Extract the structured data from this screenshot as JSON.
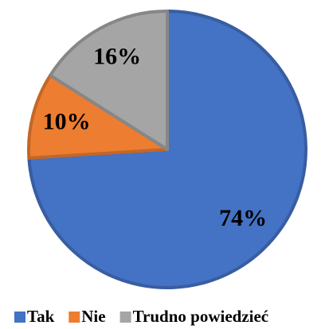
{
  "chart_data": {
    "type": "pie",
    "categories": [
      "Tak",
      "Nie",
      "Trudno powiedzieć"
    ],
    "values": [
      74,
      10,
      16
    ],
    "value_labels": [
      "74%",
      "10%",
      "16%"
    ],
    "colors": [
      "#4472c4",
      "#ed7d31",
      "#a5a5a5"
    ],
    "legend": "bottom"
  }
}
